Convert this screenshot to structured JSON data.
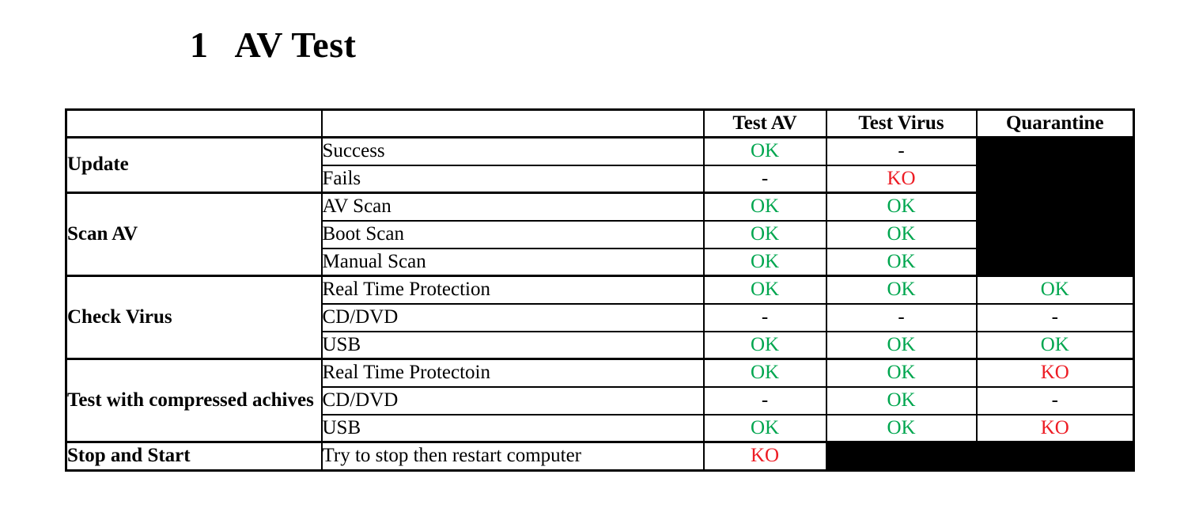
{
  "heading": {
    "number": "1",
    "title": "AV Test"
  },
  "colors": {
    "ok": "#00A64F",
    "ko": "#ED1C24",
    "none": "#000000",
    "redacted": "#000000"
  },
  "table": {
    "headers": [
      "",
      "",
      "Test AV",
      "Test Virus",
      "Quarantine"
    ],
    "groups": [
      {
        "label": "Update",
        "rows": [
          {
            "test": "Success",
            "results": [
              {
                "text": "OK",
                "status": "ok"
              },
              {
                "text": "-",
                "status": "none"
              },
              {
                "text": "",
                "status": "redacted"
              }
            ]
          },
          {
            "test": "Fails",
            "results": [
              {
                "text": "-",
                "status": "none"
              },
              {
                "text": "KO",
                "status": "ko"
              },
              {
                "text": "",
                "status": "redacted"
              }
            ]
          }
        ]
      },
      {
        "label": "Scan AV",
        "rows": [
          {
            "test": "AV Scan",
            "results": [
              {
                "text": "OK",
                "status": "ok"
              },
              {
                "text": "OK",
                "status": "ok"
              },
              {
                "text": "",
                "status": "redacted"
              }
            ]
          },
          {
            "test": "Boot Scan",
            "results": [
              {
                "text": "OK",
                "status": "ok"
              },
              {
                "text": "OK",
                "status": "ok"
              },
              {
                "text": "",
                "status": "redacted"
              }
            ]
          },
          {
            "test": "Manual Scan",
            "results": [
              {
                "text": "OK",
                "status": "ok"
              },
              {
                "text": "OK",
                "status": "ok"
              },
              {
                "text": "",
                "status": "redacted"
              }
            ]
          }
        ]
      },
      {
        "label": "Check Virus",
        "rows": [
          {
            "test": "Real Time Protection",
            "results": [
              {
                "text": "OK",
                "status": "ok"
              },
              {
                "text": "OK",
                "status": "ok"
              },
              {
                "text": "OK",
                "status": "ok"
              }
            ]
          },
          {
            "test": "CD/DVD",
            "results": [
              {
                "text": "-",
                "status": "none"
              },
              {
                "text": "-",
                "status": "none"
              },
              {
                "text": "-",
                "status": "none"
              }
            ]
          },
          {
            "test": "USB",
            "results": [
              {
                "text": "OK",
                "status": "ok"
              },
              {
                "text": "OK",
                "status": "ok"
              },
              {
                "text": "OK",
                "status": "ok"
              }
            ]
          }
        ]
      },
      {
        "label": "Test with compressed achives",
        "rows": [
          {
            "test": "Real Time Protectoin",
            "results": [
              {
                "text": "OK",
                "status": "ok"
              },
              {
                "text": "OK",
                "status": "ok"
              },
              {
                "text": "KO",
                "status": "ko"
              }
            ]
          },
          {
            "test": "CD/DVD",
            "results": [
              {
                "text": "-",
                "status": "none"
              },
              {
                "text": "OK",
                "status": "ok"
              },
              {
                "text": "-",
                "status": "none"
              }
            ]
          },
          {
            "test": "USB",
            "results": [
              {
                "text": "OK",
                "status": "ok"
              },
              {
                "text": "OK",
                "status": "ok"
              },
              {
                "text": "KO",
                "status": "ko"
              }
            ]
          }
        ]
      },
      {
        "label": "Stop and Start",
        "rows": [
          {
            "test": "Try to stop then restart computer",
            "results": [
              {
                "text": "KO",
                "status": "ko"
              },
              {
                "text": "",
                "status": "redacted"
              },
              {
                "text": "",
                "status": "redacted"
              }
            ]
          }
        ]
      }
    ]
  }
}
